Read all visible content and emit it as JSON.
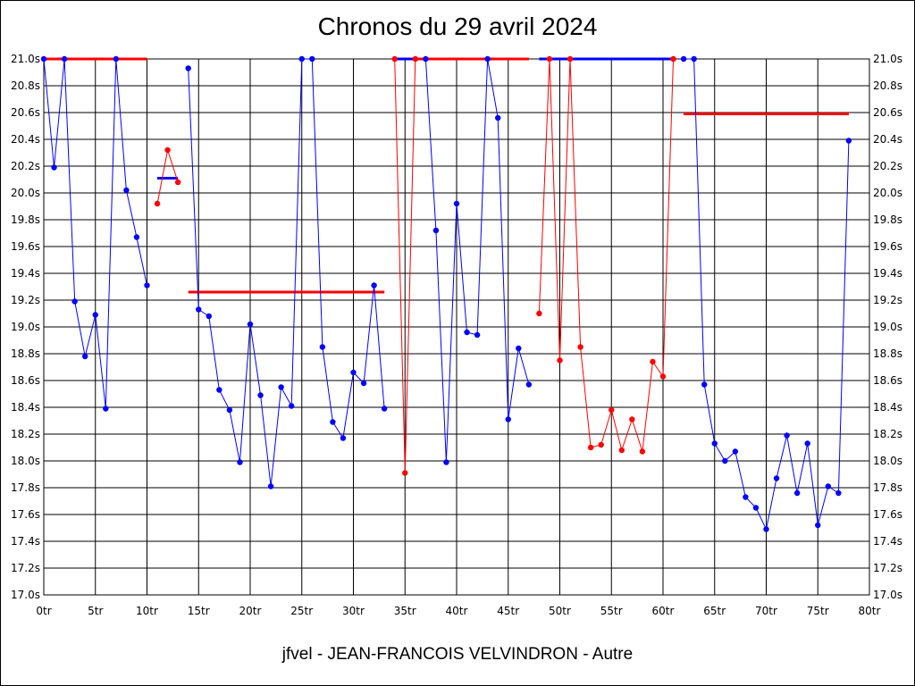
{
  "chart_data": {
    "type": "line",
    "title": "Chronos du 29 avril 2024",
    "footer": "jfvel - JEAN-FRANCOIS VELVINDRON - Autre",
    "xlim": [
      0,
      80
    ],
    "ylim": [
      17.0,
      21.0
    ],
    "x_ticks": [
      0,
      5,
      10,
      15,
      20,
      25,
      30,
      35,
      40,
      45,
      50,
      55,
      60,
      65,
      70,
      75,
      80
    ],
    "x_tick_labels": [
      "0tr",
      "5tr",
      "10tr",
      "15tr",
      "20tr",
      "25tr",
      "30tr",
      "35tr",
      "40tr",
      "45tr",
      "50tr",
      "55tr",
      "60tr",
      "65tr",
      "70tr",
      "75tr",
      "80tr"
    ],
    "y_ticks": [
      17.0,
      17.2,
      17.4,
      17.6,
      17.8,
      18.0,
      18.2,
      18.4,
      18.6,
      18.8,
      19.0,
      19.2,
      19.4,
      19.6,
      19.8,
      20.0,
      20.2,
      20.4,
      20.6,
      20.8,
      21.0
    ],
    "y_tick_labels": [
      "17.0s",
      "17.2s",
      "17.4s",
      "17.6s",
      "17.8s",
      "18.0s",
      "18.2s",
      "18.4s",
      "18.6s",
      "18.8s",
      "19.0s",
      "19.2s",
      "19.4s",
      "19.6s",
      "19.8s",
      "20.0s",
      "20.2s",
      "20.4s",
      "20.6s",
      "20.8s",
      "21.0s"
    ],
    "grid": true,
    "colors": {
      "blue": "#0000ff",
      "red": "#ff0000",
      "grid": "#000000"
    },
    "segments": [
      {
        "color": "blue",
        "points": [
          [
            0,
            21.0
          ],
          [
            1,
            20.19
          ],
          [
            2,
            21.0
          ],
          [
            3,
            19.19
          ],
          [
            4,
            18.78
          ],
          [
            5,
            19.09
          ],
          [
            6,
            18.39
          ],
          [
            7,
            21.0
          ],
          [
            8,
            20.02
          ],
          [
            9,
            19.67
          ],
          [
            10,
            19.31
          ]
        ]
      },
      {
        "color": "red",
        "points": [
          [
            11,
            19.92
          ],
          [
            12,
            20.32
          ],
          [
            13,
            20.08
          ]
        ]
      },
      {
        "color": "blue",
        "points": [
          [
            14,
            20.93
          ],
          [
            15,
            19.13
          ],
          [
            16,
            19.08
          ],
          [
            17,
            18.53
          ],
          [
            18,
            18.38
          ],
          [
            19,
            17.99
          ],
          [
            20,
            19.02
          ],
          [
            21,
            18.49
          ],
          [
            22,
            17.81
          ],
          [
            23,
            18.55
          ],
          [
            24,
            18.41
          ],
          [
            25,
            21.0
          ],
          [
            26,
            21.0
          ],
          [
            27,
            18.85
          ],
          [
            28,
            18.29
          ],
          [
            29,
            18.17
          ],
          [
            30,
            18.66
          ],
          [
            31,
            18.58
          ],
          [
            32,
            19.31
          ],
          [
            33,
            18.39
          ]
        ]
      },
      {
        "color": "red",
        "points": [
          [
            34,
            21.0
          ],
          [
            35,
            17.91
          ],
          [
            36,
            21.0
          ]
        ]
      },
      {
        "color": "blue",
        "points": [
          [
            37,
            21.0
          ],
          [
            38,
            19.72
          ],
          [
            39,
            17.99
          ],
          [
            40,
            19.92
          ],
          [
            41,
            18.96
          ],
          [
            42,
            18.94
          ],
          [
            43,
            21.0
          ],
          [
            44,
            20.56
          ],
          [
            45,
            18.31
          ],
          [
            46,
            18.84
          ],
          [
            47,
            18.57
          ]
        ]
      },
      {
        "color": "red",
        "points": [
          [
            48,
            19.1
          ],
          [
            49,
            21.0
          ],
          [
            50,
            18.75
          ],
          [
            51,
            21.0
          ],
          [
            52,
            18.85
          ],
          [
            53,
            18.1
          ],
          [
            54,
            18.12
          ],
          [
            55,
            18.38
          ],
          [
            56,
            18.08
          ],
          [
            57,
            18.31
          ],
          [
            58,
            18.07
          ],
          [
            59,
            18.74
          ],
          [
            60,
            18.63
          ],
          [
            61,
            21.0
          ]
        ]
      },
      {
        "color": "blue",
        "points": [
          [
            62,
            21.0
          ],
          [
            63,
            21.0
          ],
          [
            64,
            18.57
          ],
          [
            65,
            18.13
          ],
          [
            66,
            18.0
          ],
          [
            67,
            18.07
          ],
          [
            68,
            17.73
          ],
          [
            69,
            17.65
          ],
          [
            70,
            17.49
          ],
          [
            71,
            17.87
          ],
          [
            72,
            18.19
          ],
          [
            73,
            17.76
          ],
          [
            74,
            18.13
          ],
          [
            75,
            17.52
          ],
          [
            76,
            17.81
          ],
          [
            77,
            17.76
          ],
          [
            78,
            20.39
          ]
        ]
      }
    ],
    "reference_lines": [
      {
        "color": "red",
        "x": [
          0,
          10
        ],
        "y": 21.0
      },
      {
        "color": "blue",
        "x": [
          11,
          13
        ],
        "y": 20.11
      },
      {
        "color": "red",
        "x": [
          14,
          33
        ],
        "y": 19.26
      },
      {
        "color": "red",
        "x": [
          34,
          47
        ],
        "y": 21.0
      },
      {
        "color": "blue",
        "x": [
          34,
          36
        ],
        "y": 21.0
      },
      {
        "color": "blue",
        "x": [
          48,
          61
        ],
        "y": 21.0
      },
      {
        "color": "red",
        "x": [
          62,
          78
        ],
        "y": 20.59
      }
    ]
  }
}
